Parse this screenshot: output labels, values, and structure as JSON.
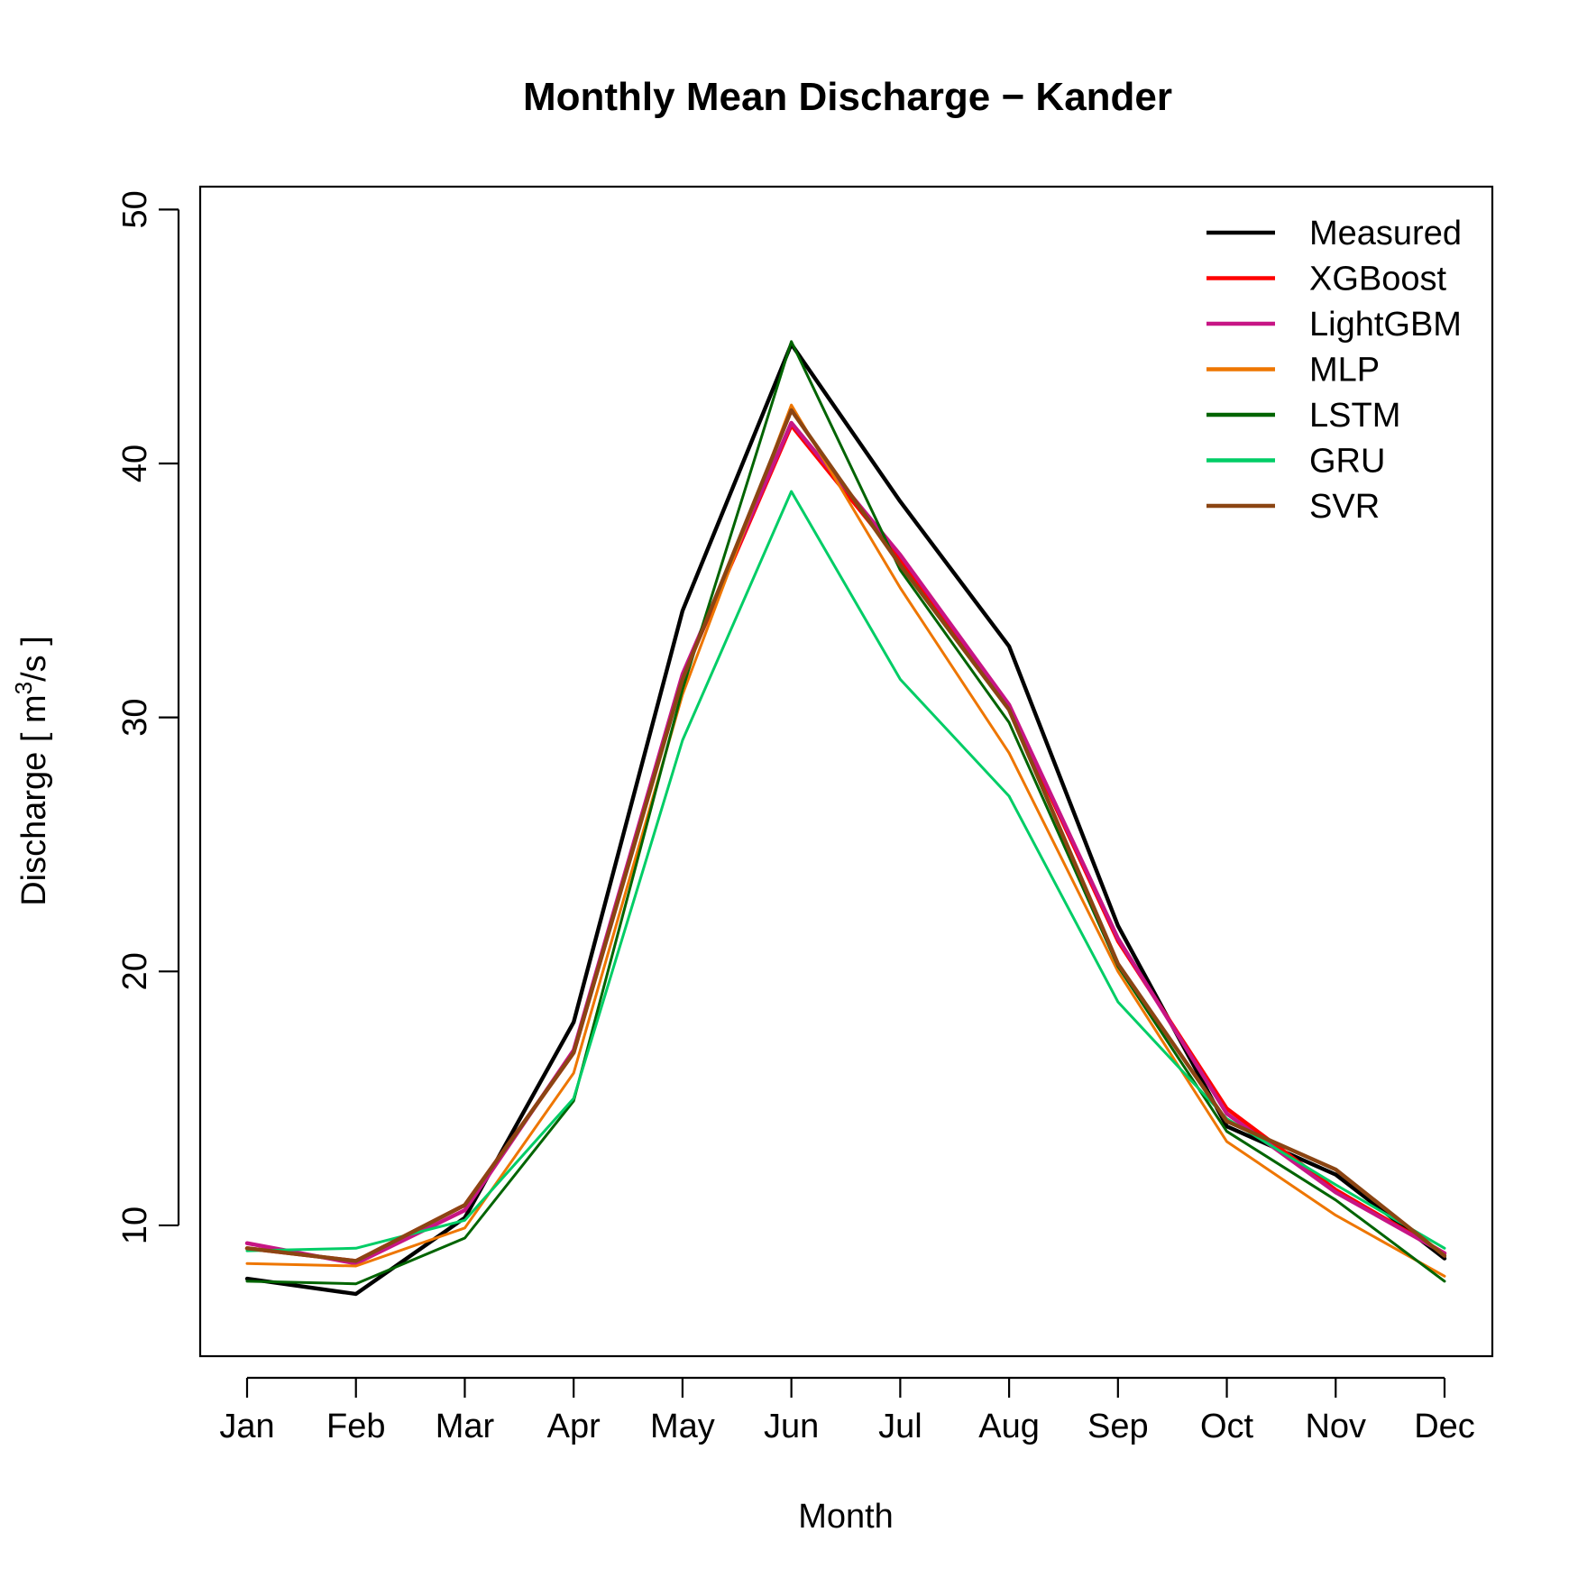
{
  "chart_data": {
    "type": "line",
    "title": "Monthly Mean Discharge − Kander",
    "xlabel": "Month",
    "ylabel_prefix": "Discharge [ m",
    "ylabel_sup": "3",
    "ylabel_suffix": "/s ]",
    "categories": [
      "Jan",
      "Feb",
      "Mar",
      "Apr",
      "May",
      "Jun",
      "Jul",
      "Aug",
      "Sep",
      "Oct",
      "Nov",
      "Dec"
    ],
    "ylim": [
      4.85,
      50.9
    ],
    "yticks": [
      10,
      20,
      30,
      40,
      50
    ],
    "grid": false,
    "legend_position": "top-right",
    "series": [
      {
        "name": "Measured",
        "color": "#000000",
        "width": "thick",
        "values": [
          7.9,
          7.3,
          10.3,
          18.0,
          34.2,
          44.7,
          38.5,
          32.8,
          21.8,
          13.9,
          12.0,
          8.7
        ]
      },
      {
        "name": "XGBoost",
        "color": "#ff0000",
        "width": "thick",
        "values": [
          9.1,
          8.6,
          10.8,
          16.8,
          31.6,
          41.5,
          36.2,
          30.4,
          21.2,
          14.6,
          11.4,
          8.9
        ]
      },
      {
        "name": "LightGBM",
        "color": "#c71585",
        "width": "thick",
        "values": [
          9.3,
          8.5,
          10.6,
          16.9,
          31.7,
          41.6,
          36.4,
          30.5,
          21.3,
          14.4,
          11.3,
          8.9
        ]
      },
      {
        "name": "MLP",
        "color": "#ee7600",
        "width": "normal",
        "values": [
          8.5,
          8.4,
          9.9,
          16.0,
          30.9,
          42.3,
          35.1,
          28.6,
          20.0,
          13.3,
          10.4,
          8.0
        ]
      },
      {
        "name": "LSTM",
        "color": "#006400",
        "width": "normal",
        "values": [
          7.8,
          7.7,
          9.5,
          14.9,
          31.1,
          44.8,
          35.8,
          29.8,
          20.2,
          13.7,
          11.0,
          7.8
        ]
      },
      {
        "name": "GRU",
        "color": "#00cd66",
        "width": "normal",
        "values": [
          9.0,
          9.1,
          10.2,
          15.0,
          29.1,
          38.9,
          31.5,
          26.9,
          18.8,
          14.2,
          11.6,
          9.1
        ]
      },
      {
        "name": "SVR",
        "color": "#8b4513",
        "width": "thick",
        "values": [
          9.1,
          8.6,
          10.8,
          16.8,
          31.5,
          42.1,
          36.0,
          30.3,
          20.3,
          14.1,
          12.2,
          8.8
        ]
      }
    ]
  }
}
